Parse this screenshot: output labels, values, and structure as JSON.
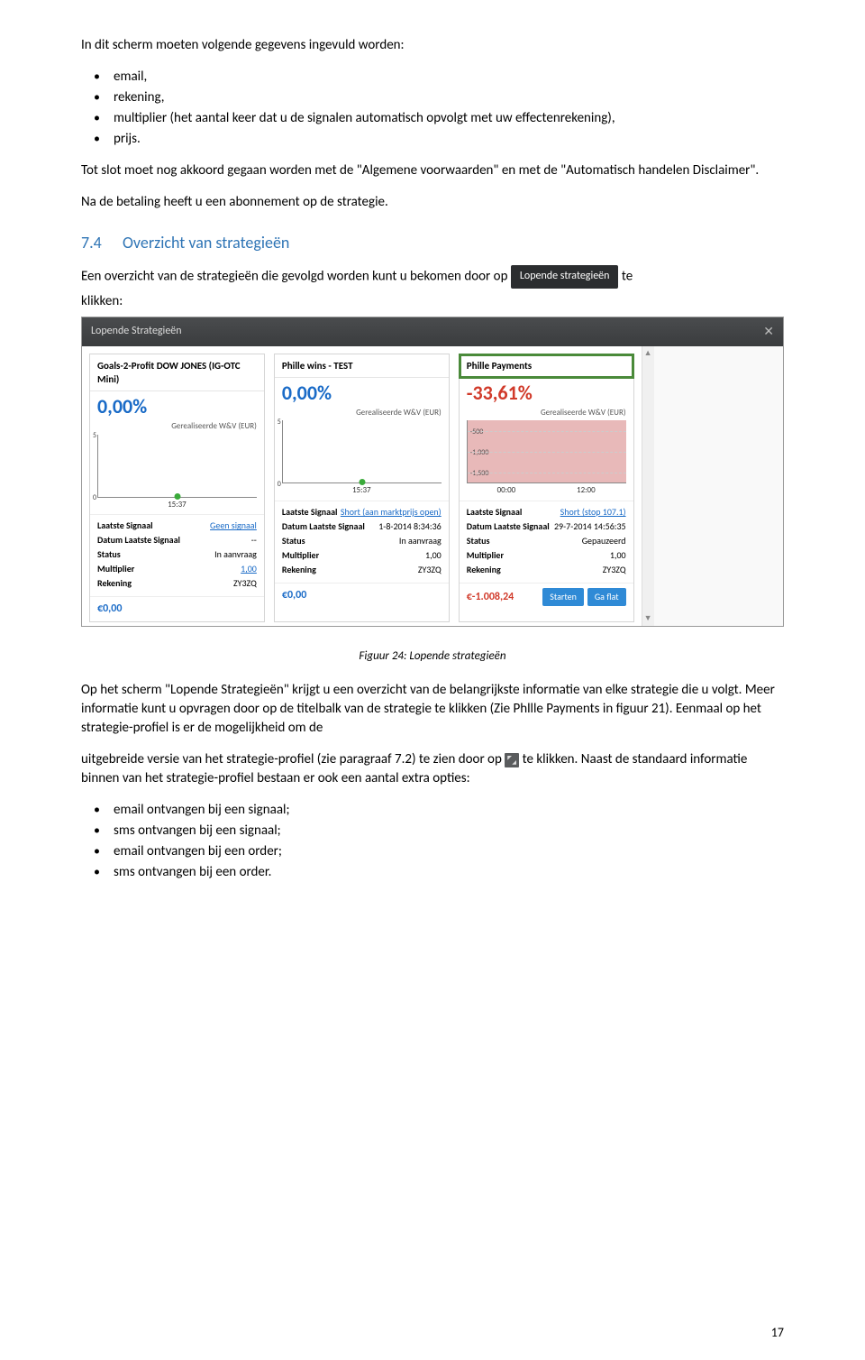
{
  "intro": "In dit scherm moeten volgende gegevens ingevuld worden:",
  "fields_list": [
    "email,",
    "rekening,",
    "multiplier (het aantal keer dat u de signalen automatisch opvolgt met uw effectenrekening),",
    "prijs."
  ],
  "para2": "Tot slot moet nog akkoord gegaan worden met de \"Algemene voorwaarden\" en met de \"Automatisch handelen Disclaimer\".",
  "para3": "Na de betaling heeft u een abonnement op de strategie.",
  "section": {
    "num": "7.4",
    "title": "Overzicht van strategieën"
  },
  "sentence_before_chip": "Een overzicht van de strategieën die gevolgd worden kunt u bekomen door op ",
  "chip_label": "Lopende strategieën",
  "sentence_after_chip": " te",
  "clickword": "klikken:",
  "shot": {
    "header_title": "Lopende Strategieën",
    "wv_label": "Gerealiseerde W&V (EUR)",
    "cards": [
      {
        "title": "Goals-2-Profit DOW JONES (IG-OTC Mini)",
        "pct": "0,00%",
        "pct_class": "blue",
        "yticks": [
          "5",
          "0"
        ],
        "ytick_inside": false,
        "xticks": [
          "15:37"
        ],
        "xtick_mode": "one",
        "dot": true,
        "chart_class": "",
        "kv": [
          {
            "k": "Laatste Signaal",
            "v": "Geen signaal",
            "link": true
          },
          {
            "k": "Datum Laatste Signaal",
            "v": "--"
          },
          {
            "k": "Status",
            "v": "In aanvraag"
          },
          {
            "k": "Multiplier",
            "v": "1,00",
            "link": true
          },
          {
            "k": "Rekening",
            "v": "ZY3ZQ"
          }
        ],
        "amount": "€0,00",
        "amount_class": "blue",
        "buttons": []
      },
      {
        "title": "Phille wins - TEST",
        "pct": "0,00%",
        "pct_class": "blue",
        "yticks": [
          "5",
          "0"
        ],
        "ytick_inside": false,
        "xticks": [
          "15:37"
        ],
        "xtick_mode": "one",
        "dot": true,
        "chart_class": "",
        "kv": [
          {
            "k": "Laatste Signaal",
            "v": "Short (aan marktprijs open)",
            "link": true
          },
          {
            "k": "Datum Laatste Signaal",
            "v": "1-8-2014 8:34:36"
          },
          {
            "k": "Status",
            "v": "In aanvraag"
          },
          {
            "k": "Multiplier",
            "v": "1,00"
          },
          {
            "k": "Rekening",
            "v": "ZY3ZQ"
          }
        ],
        "amount": "€0,00",
        "amount_class": "blue",
        "buttons": []
      },
      {
        "title": "Phille Payments",
        "title_boxed": true,
        "pct": "-33,61%",
        "pct_class": "red",
        "yticks": [
          "-500",
          "-1,000",
          "-1,500"
        ],
        "ytick_inside": true,
        "xticks": [
          "00:00",
          "12:00"
        ],
        "xtick_mode": "two",
        "dot": false,
        "chart_class": "pink",
        "kv": [
          {
            "k": "Laatste Signaal",
            "v": "Short (stop 107.1)",
            "link": true
          },
          {
            "k": "Datum Laatste Signaal",
            "v": "29-7-2014 14:56:35"
          },
          {
            "k": "Status",
            "v": "Gepauzeerd"
          },
          {
            "k": "Multiplier",
            "v": "1,00"
          },
          {
            "k": "Rekening",
            "v": "ZY3ZQ"
          }
        ],
        "amount": "€-1.008,24",
        "amount_class": "red",
        "buttons": [
          "Starten",
          "Ga flat"
        ]
      }
    ]
  },
  "caption": "Figuur 24: Lopende strategieën",
  "body1a": "Op het scherm \"Lopende Strategieën\" krijgt u een overzicht van de belangrijkste informatie van elke strategie die u volgt. Meer informatie kunt u opvragen door op de titelbalk van de strategie te klikken (Zie Phllle Payments in figuur 21). Eenmaal op het strategie-profiel is er de mogelijkheid om de",
  "body1b": "uitgebreide versie van het strategie-profiel (zie paragraaf 7.2) te zien door op ",
  "body1c": " te klikken.",
  "body2": "Naast de standaard informatie binnen van het strategie-profiel bestaan er ook een aantal extra opties:",
  "options_list": [
    "email ontvangen bij een signaal;",
    "sms ontvangen bij een signaal;",
    "email ontvangen bij een order;",
    "sms ontvangen bij een order."
  ],
  "page_num": "17"
}
